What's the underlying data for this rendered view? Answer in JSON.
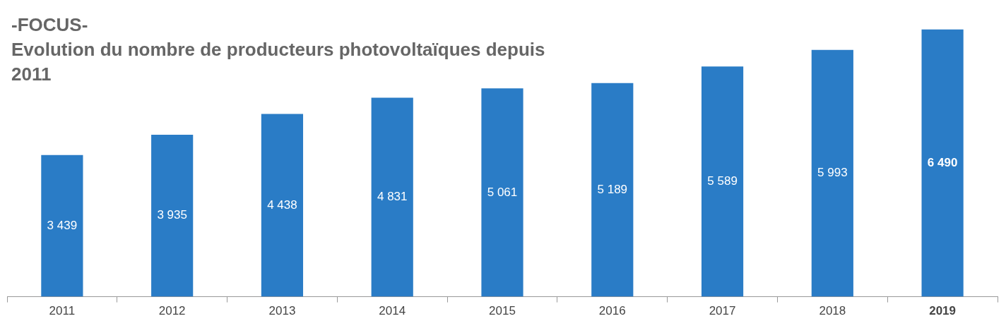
{
  "chart_data": {
    "type": "bar",
    "title": "-FOCUS-",
    "subtitle": "Evolution du nombre de producteurs photovoltaïques depuis 2011",
    "categories": [
      "2011",
      "2012",
      "2013",
      "2014",
      "2015",
      "2016",
      "2017",
      "2018",
      "2019"
    ],
    "values": [
      3439,
      3935,
      4438,
      4831,
      5061,
      5189,
      5589,
      5993,
      6490
    ],
    "value_labels": [
      "3 439",
      "3 935",
      "4 438",
      "4 831",
      "5 061",
      "5 189",
      "5 589",
      "5 993",
      "6 490"
    ],
    "color": "#2a7cc6",
    "legend": false,
    "grid": false
  }
}
